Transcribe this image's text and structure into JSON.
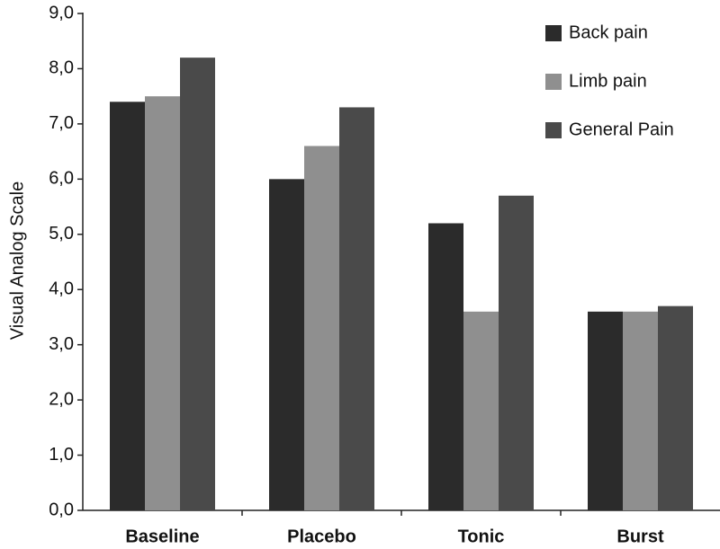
{
  "chart_data": {
    "type": "bar",
    "y_label": "Visual Analog Scale",
    "categories": [
      "Baseline",
      "Placebo",
      "Tonic",
      "Burst"
    ],
    "series": [
      {
        "name": "Back pain",
        "color": "#2b2b2b",
        "values": [
          7.4,
          6.0,
          5.2,
          3.6
        ]
      },
      {
        "name": "Limb pain",
        "color": "#8f8f8f",
        "values": [
          7.5,
          6.6,
          3.6,
          3.6
        ]
      },
      {
        "name": "General Pain",
        "color": "#4a4a4a",
        "values": [
          8.2,
          7.3,
          5.7,
          3.7
        ]
      }
    ],
    "ylim": [
      0,
      9
    ],
    "yticks": [
      {
        "value": 0,
        "label": "0,0"
      },
      {
        "value": 1,
        "label": "1,0"
      },
      {
        "value": 2,
        "label": "2,0"
      },
      {
        "value": 3,
        "label": "3,0"
      },
      {
        "value": 4,
        "label": "4,0"
      },
      {
        "value": 5,
        "label": "5,0"
      },
      {
        "value": 6,
        "label": "6,0"
      },
      {
        "value": 7,
        "label": "7,0"
      },
      {
        "value": 8,
        "label": "8,0"
      },
      {
        "value": 9,
        "label": "9,0"
      }
    ],
    "grid": false,
    "legend": "top-right"
  }
}
